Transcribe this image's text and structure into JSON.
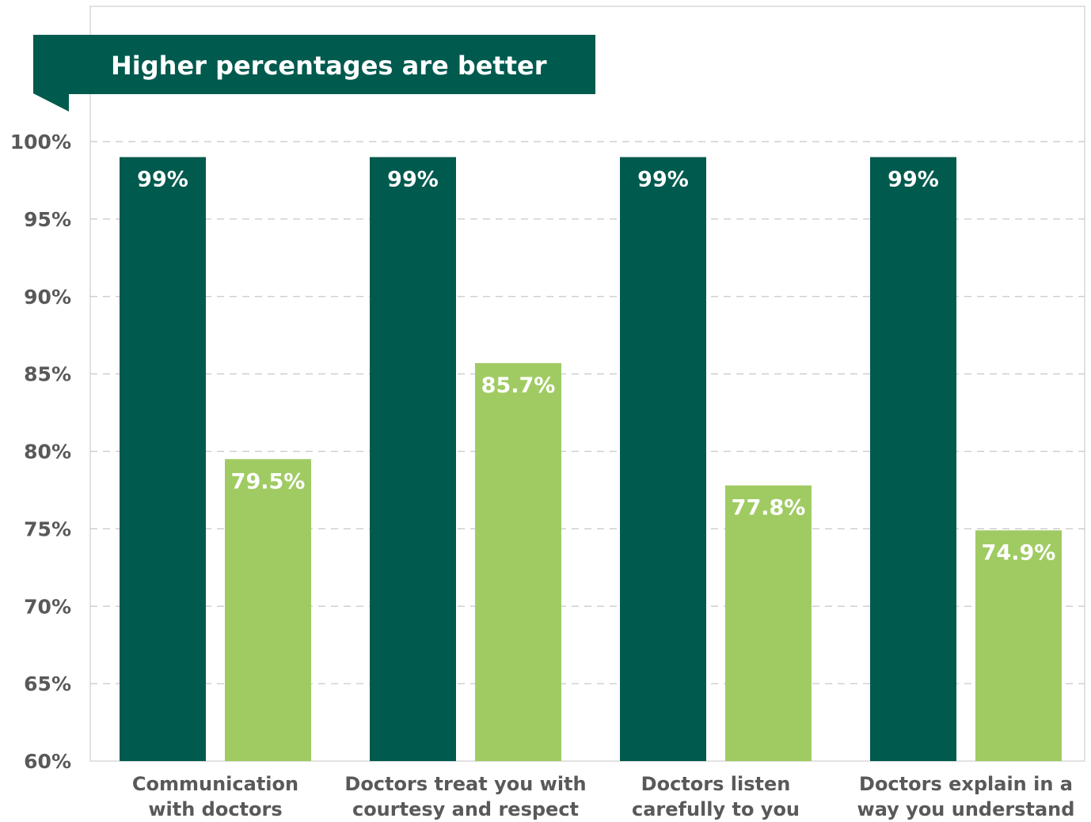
{
  "colors": {
    "dark_green": "#005A4E",
    "light_green": "#A0CB63",
    "banner": "#005A4E",
    "grid": "#C8C8C8",
    "axis_text": "#595959"
  },
  "banner": {
    "text": "Higher percentages are better"
  },
  "chart_data": {
    "type": "bar",
    "title": "",
    "xlabel": "",
    "ylabel": "",
    "ylim": [
      60,
      100
    ],
    "y_ticks": [
      100,
      95,
      90,
      85,
      80,
      75,
      70,
      65,
      60
    ],
    "y_tick_labels": [
      "100%",
      "95%",
      "90%",
      "85%",
      "80%",
      "75%",
      "70%",
      "65%",
      "60%"
    ],
    "grid": true,
    "categories": [
      [
        "Communication",
        "with doctors"
      ],
      [
        "Doctors treat you with",
        "courtesy and respect"
      ],
      [
        "Doctors listen",
        "carefully to you"
      ],
      [
        "Doctors explain in a",
        "way you understand"
      ]
    ],
    "series": [
      {
        "color": "#005A4E",
        "values": [
          99,
          99,
          99,
          99
        ],
        "labels": [
          "99%",
          "99%",
          "99%",
          "99%"
        ]
      },
      {
        "color": "#A0CB63",
        "values": [
          79.5,
          85.7,
          77.8,
          74.9
        ],
        "labels": [
          "79.5%",
          "85.7%",
          "77.8%",
          "74.9%"
        ]
      }
    ]
  }
}
